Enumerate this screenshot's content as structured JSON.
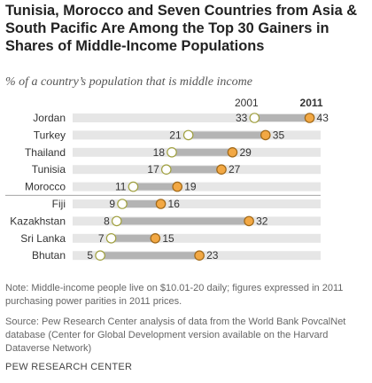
{
  "title": "Tunisia, Morocco and Seven Countries from Asia & South Pacific Are Among the Top 30 Gainers in Shares of Middle-Income Populations",
  "subtitle": "% of a country’s population that is middle income",
  "note": "Note: Middle-income people live on $10.01-20 daily; figures expressed in 2011 purchasing power parities in 2011 prices.",
  "source": "Source: Pew Research Center analysis of data from the World Bank PovcalNet database (Center for Global Development version available on the Harvard Dataverse Network)",
  "footer": "PEW RESEARCH CENTER",
  "colors": {
    "track": "#e6e6e6",
    "range_bar": "#b4b4b4",
    "marker_2001_fill": "#ffffff",
    "marker_2001_stroke": "#a0a040",
    "marker_2011_fill": "#f2a844",
    "marker_2011_stroke": "#a06818",
    "divider": "#999999"
  },
  "chart_data": {
    "type": "dot-range",
    "series": [
      {
        "name": "2001",
        "values": [
          33,
          21,
          18,
          17,
          11,
          9,
          8,
          7,
          5
        ]
      },
      {
        "name": "2011",
        "values": [
          43,
          35,
          29,
          27,
          19,
          16,
          32,
          15,
          23
        ]
      }
    ],
    "categories": [
      "Jordan",
      "Turkey",
      "Thailand",
      "Tunisia",
      "Morocco",
      "Fiji",
      "Kazakhstan",
      "Sri Lanka",
      "Bhutan"
    ],
    "group_divider_after": "Morocco",
    "xlim": [
      0,
      45
    ]
  }
}
